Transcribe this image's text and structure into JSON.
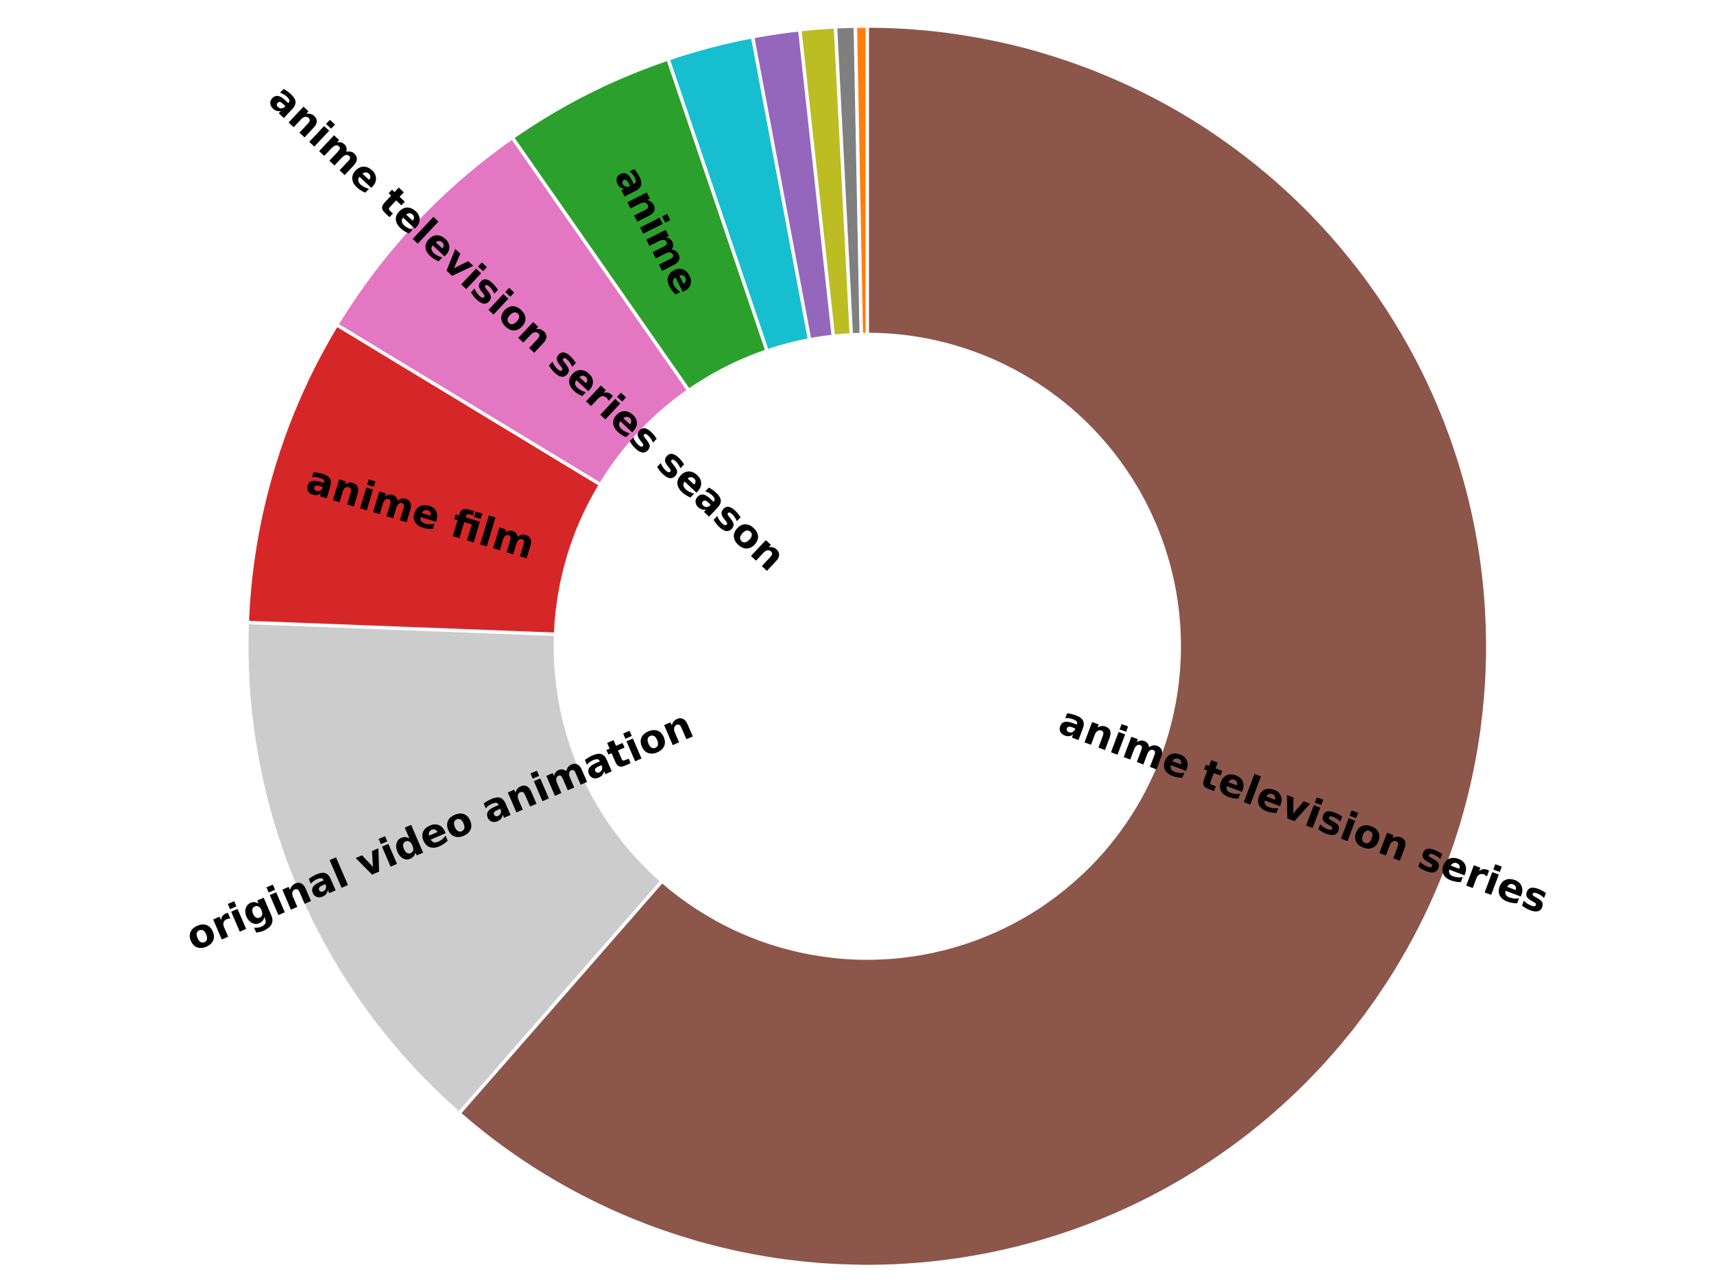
{
  "chart_data": {
    "type": "pie",
    "donut": true,
    "title": "",
    "start": "top",
    "direction": "clockwise",
    "slices": [
      {
        "label": "anime television series",
        "value": 60.2,
        "color": "#8c564b"
      },
      {
        "label": "original video animation",
        "value": 13.9,
        "color": "#cccccc"
      },
      {
        "label": "anime film",
        "value": 7.9,
        "color": "#d62728"
      },
      {
        "label": "anime television series season",
        "value": 6.5,
        "color": "#e377c2"
      },
      {
        "label": "anime",
        "value": 4.4,
        "color": "#2ca02c"
      },
      {
        "label": "",
        "value": 2.2,
        "color": "#17becf"
      },
      {
        "label": "",
        "value": 1.2,
        "color": "#9467bd"
      },
      {
        "label": "",
        "value": 0.9,
        "color": "#bcbd22"
      },
      {
        "label": "",
        "value": 0.5,
        "color": "#7f7f7f"
      },
      {
        "label": "",
        "value": 0.3,
        "color": "#ff7f0e"
      }
    ]
  }
}
